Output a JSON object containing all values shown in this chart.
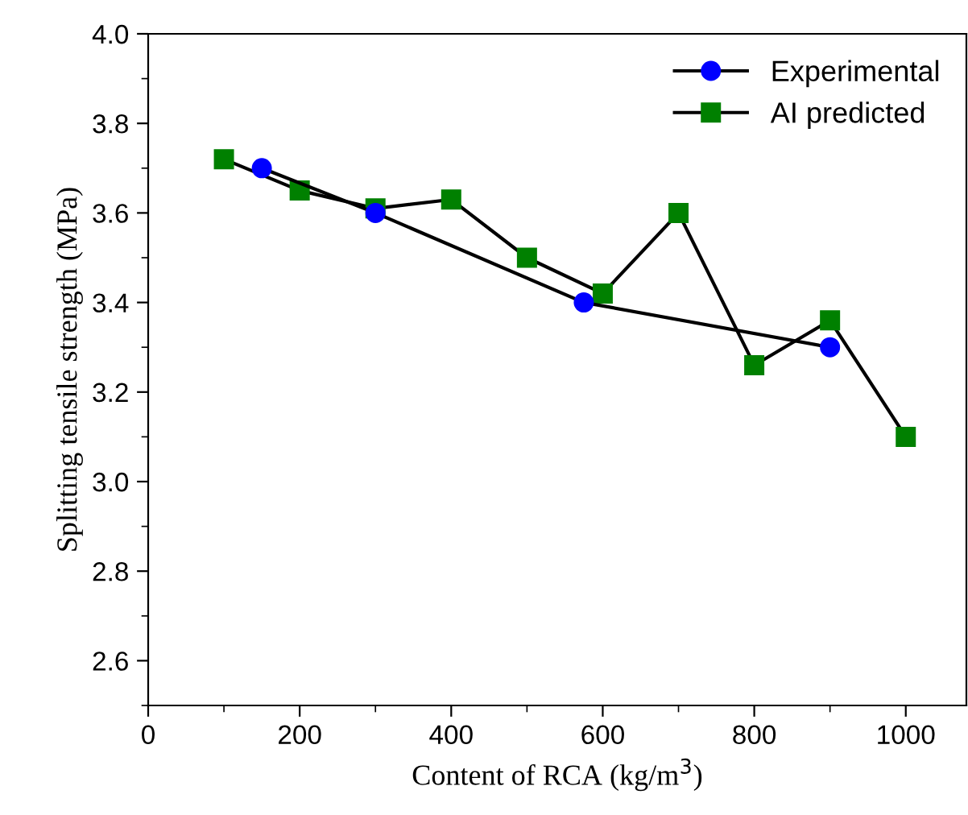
{
  "chart_data": {
    "type": "line",
    "xlabel": "Content of RCA (kg/m$^{3}$)",
    "ylabel": "Splitting tensile strength (MPa)",
    "xlim": [
      0,
      1080
    ],
    "xticks": [
      0,
      200,
      400,
      600,
      800,
      1000
    ],
    "ylim": [
      2.5,
      4.0
    ],
    "yticks": [
      2.6,
      2.8,
      {
        "value": 3.0,
        "label": "3.0"
      },
      3.2,
      3.4,
      3.6,
      3.8,
      {
        "value": 4.0,
        "label": "4.0"
      }
    ],
    "grid": false,
    "legend": "top right",
    "series": [
      {
        "name": "Experimental",
        "color": "#0000ff",
        "marker": "circle",
        "x": [
          150,
          300,
          575,
          900
        ],
        "values": [
          3.7,
          3.6,
          3.4,
          3.3
        ]
      },
      {
        "name": "AI predicted",
        "color": "#008000",
        "marker": "square",
        "x": [
          100,
          200,
          300,
          400,
          500,
          600,
          700,
          800,
          900,
          1000
        ],
        "values": [
          3.72,
          3.65,
          3.61,
          3.63,
          3.5,
          3.42,
          3.6,
          3.26,
          3.36,
          3.1
        ]
      }
    ]
  }
}
